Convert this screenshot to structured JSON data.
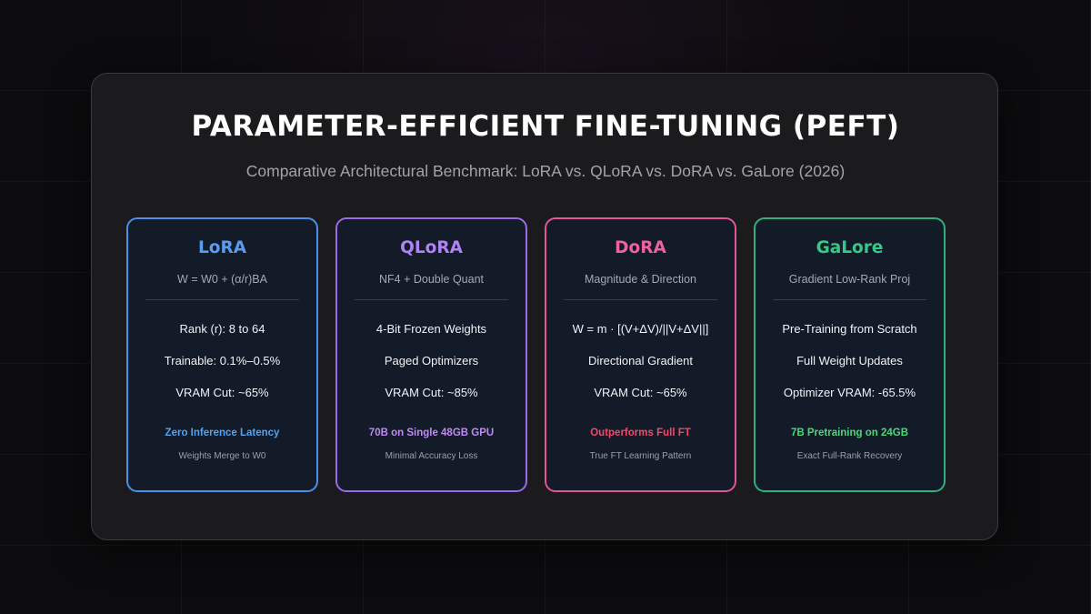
{
  "header": {
    "title": "PARAMETER-EFFICIENT FINE-TUNING (PEFT)",
    "subtitle": "Comparative Architectural Benchmark: LoRA vs. QLoRA vs. DoRA vs. GaLore (2026)"
  },
  "cards": [
    {
      "name": "LoRA",
      "formula": "W = W0 + (α/r)BA",
      "features": [
        "Rank (r): 8 to 64",
        "Trainable: 0.1%–0.5%",
        "VRAM Cut: ~65%"
      ],
      "highlight": "Zero Inference Latency",
      "note": "Weights Merge to W0",
      "accent_color": "#4a8fe8",
      "name_color": "#5a9cf0",
      "highlight_color": "#4fa3f0"
    },
    {
      "name": "QLoRA",
      "formula": "NF4 + Double Quant",
      "features": [
        "4-Bit Frozen Weights",
        "Paged Optimizers",
        "VRAM Cut: ~85%"
      ],
      "highlight": "70B on Single 48GB GPU",
      "note": "Minimal Accuracy Loss",
      "accent_color": "#9b6ae8",
      "name_color": "#b083f5",
      "highlight_color": "#c08af5"
    },
    {
      "name": "DoRA",
      "formula": "Magnitude & Direction",
      "features": [
        "W = m · [(V+ΔV)/||V+ΔV||]",
        "Directional Gradient",
        "VRAM Cut: ~65%"
      ],
      "highlight": "Outperforms Full FT",
      "note": "True FT Learning Pattern",
      "accent_color": "#e25596",
      "name_color": "#f0609e",
      "highlight_color": "#f04a6a"
    },
    {
      "name": "GaLore",
      "formula": "Gradient Low-Rank Proj",
      "features": [
        "Pre-Training from Scratch",
        "Full Weight Updates",
        "Optimizer VRAM: -65.5%"
      ],
      "highlight": "7B Pretraining on 24GB",
      "note": "Exact Full-Rank Recovery",
      "accent_color": "#2fb07f",
      "name_color": "#34c98a",
      "highlight_color": "#4cd67a"
    }
  ]
}
